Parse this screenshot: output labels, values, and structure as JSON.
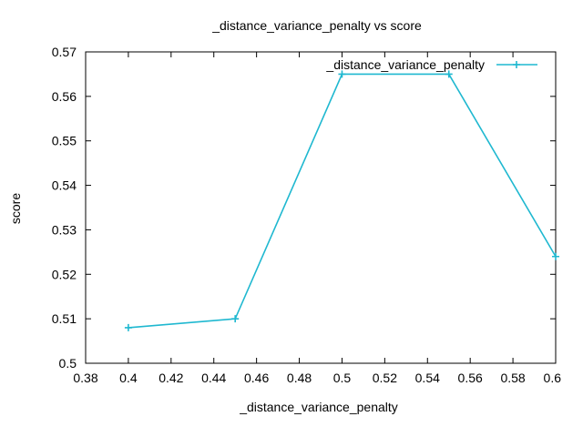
{
  "chart_data": {
    "type": "line",
    "title": "_distance_variance_penalty vs score",
    "xlabel": "_distance_variance_penalty",
    "ylabel": "score",
    "xlim": [
      0.38,
      0.6
    ],
    "ylim": [
      0.5,
      0.57
    ],
    "x_ticks": [
      "0.38",
      "0.4",
      "0.42",
      "0.44",
      "0.46",
      "0.48",
      "0.5",
      "0.52",
      "0.54",
      "0.56",
      "0.58",
      "0.6"
    ],
    "y_ticks": [
      "0.5",
      "0.51",
      "0.52",
      "0.53",
      "0.54",
      "0.55",
      "0.56",
      "0.57"
    ],
    "grid": false,
    "legend_position": "top-right",
    "series": [
      {
        "name": "_distance_variance_penalty",
        "color": "#1fb8d0",
        "marker": "plus",
        "x": [
          0.4,
          0.45,
          0.5,
          0.55,
          0.6
        ],
        "y": [
          0.508,
          0.51,
          0.565,
          0.565,
          0.524
        ]
      }
    ]
  }
}
